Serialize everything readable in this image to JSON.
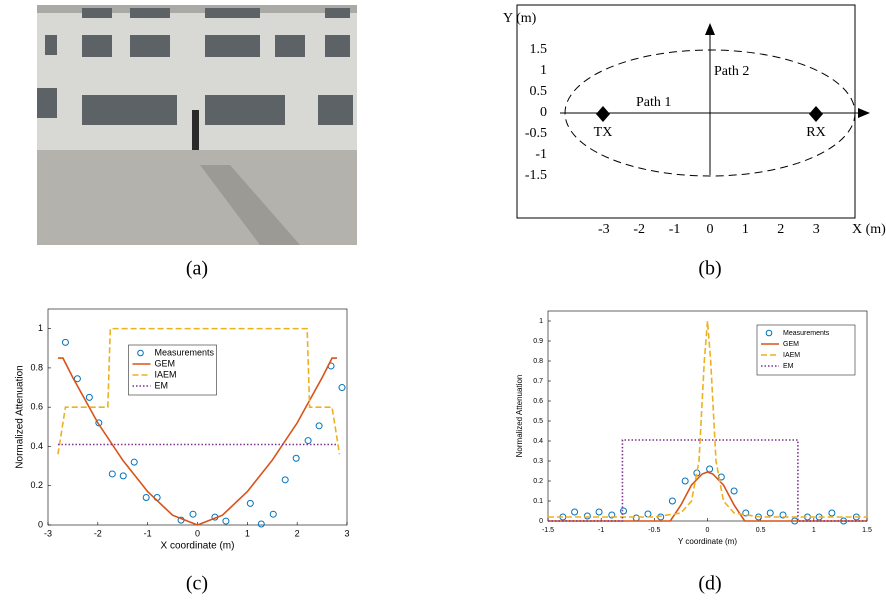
{
  "figure": {
    "captions": [
      "(a)",
      "(b)",
      "(c)",
      "(d)"
    ],
    "diagram": {
      "x_label": "X (m)",
      "y_label": "Y (m)",
      "xticks": [
        -3,
        -2,
        -1,
        0,
        1,
        2,
        3
      ],
      "yticks": [
        1.5,
        1,
        0.5,
        0,
        -0.5,
        -1,
        -1.5
      ],
      "path1": "Path 1",
      "path2": "Path 2",
      "tx": "TX",
      "rx": "RX"
    }
  },
  "chart_data": [
    {
      "type": "line",
      "xlabel": "X coordinate (m)",
      "ylabel": "Normalized Attenuation",
      "xlim": [
        -3,
        3
      ],
      "ylim": [
        0,
        1.1
      ],
      "xticks": [
        -3,
        -2,
        -1,
        0,
        1,
        2,
        3
      ],
      "yticks": [
        0,
        0.2,
        0.4,
        0.6,
        0.8,
        1
      ],
      "legend": "upper center",
      "series": [
        {
          "name": "Measurements",
          "color": "#0072bd",
          "style": "markers",
          "x": [
            -2.65,
            -2.41,
            -2.17,
            -1.98,
            -1.71,
            -1.49,
            -1.27,
            -1.03,
            -0.81,
            -0.33,
            -0.09,
            0.35,
            0.57,
            1.06,
            1.28,
            1.52,
            1.76,
            1.98,
            2.22,
            2.44,
            2.68,
            2.9
          ],
          "values": [
            0.93,
            0.745,
            0.65,
            0.52,
            0.26,
            0.25,
            0.32,
            0.14,
            0.14,
            0.025,
            0.055,
            0.04,
            0.02,
            0.11,
            0.005,
            0.055,
            0.23,
            0.34,
            0.43,
            0.505,
            0.81,
            0.7
          ]
        },
        {
          "name": "GEM",
          "color": "#d95319",
          "style": "solid",
          "x": [
            -2.8,
            -2.7,
            -2.5,
            -2,
            -1.5,
            -1,
            -0.5,
            0,
            0.5,
            1,
            1.5,
            2,
            2.5,
            2.7,
            2.8
          ],
          "values": [
            0.85,
            0.85,
            0.75,
            0.52,
            0.33,
            0.17,
            0.05,
            0,
            0.05,
            0.17,
            0.33,
            0.52,
            0.75,
            0.85,
            0.85
          ]
        },
        {
          "name": "IAEM",
          "color": "#edb120",
          "style": "dashed",
          "x": [
            -2.8,
            -2.65,
            -1.8,
            -1.75,
            2.2,
            2.25,
            2.7,
            2.85
          ],
          "values": [
            0.36,
            0.6,
            0.6,
            1,
            1,
            0.6,
            0.6,
            0.36
          ]
        },
        {
          "name": "EM",
          "color": "#7e2f8e",
          "style": "dotted",
          "x": [
            -2.8,
            2.8
          ],
          "values": [
            0.41,
            0.41
          ]
        }
      ]
    },
    {
      "type": "line",
      "xlabel": "Y coordinate (m)",
      "ylabel": "Normalized Attenuation",
      "xlim": [
        -1.5,
        1.5
      ],
      "ylim": [
        0,
        1.05
      ],
      "xticks": [
        -1.5,
        -1,
        -0.5,
        0,
        0.5,
        1,
        1.5
      ],
      "yticks": [
        0,
        0.1,
        0.2,
        0.3,
        0.4,
        0.5,
        0.6,
        0.7,
        0.8,
        0.9,
        1
      ],
      "legend": "upper right",
      "series": [
        {
          "name": "Measurements",
          "color": "#0072bd",
          "style": "markers",
          "x": [
            -1.36,
            -1.25,
            -1.13,
            -1.02,
            -0.9,
            -0.79,
            -0.67,
            -0.56,
            -0.44,
            -0.33,
            -0.21,
            -0.1,
            0.02,
            0.13,
            0.25,
            0.36,
            0.48,
            0.59,
            0.71,
            0.82,
            0.94,
            1.05,
            1.17,
            1.28,
            1.4
          ],
          "values": [
            0.02,
            0.045,
            0.025,
            0.045,
            0.03,
            0.05,
            0.015,
            0.035,
            0.02,
            0.1,
            0.2,
            0.24,
            0.26,
            0.22,
            0.15,
            0.04,
            0.02,
            0.04,
            0.03,
            0,
            0.02,
            0.02,
            0.04,
            0,
            0.02
          ]
        },
        {
          "name": "GEM",
          "color": "#d95319",
          "style": "solid",
          "x": [
            -1.5,
            -0.35,
            -0.25,
            -0.15,
            -0.05,
            0,
            0.05,
            0.15,
            0.25,
            0.35,
            1.5
          ],
          "values": [
            0,
            0,
            0.08,
            0.18,
            0.235,
            0.245,
            0.235,
            0.18,
            0.08,
            0,
            0
          ]
        },
        {
          "name": "IAEM",
          "color": "#edb120",
          "style": "dashed",
          "x": [
            -1.5,
            -0.5,
            -0.25,
            -0.15,
            -0.08,
            -0.03,
            0,
            0.03,
            0.08,
            0.15,
            0.25,
            0.5,
            1.5
          ],
          "values": [
            0.02,
            0.02,
            0.04,
            0.1,
            0.3,
            0.8,
            1,
            0.8,
            0.3,
            0.1,
            0.04,
            0.02,
            0.02
          ]
        },
        {
          "name": "EM",
          "color": "#7e2f8e",
          "style": "dotted",
          "x": [
            -1.5,
            -0.8,
            -0.8,
            0.85,
            0.85,
            1.5
          ],
          "values": [
            0,
            0,
            0.405,
            0.405,
            0,
            0
          ]
        }
      ]
    }
  ]
}
